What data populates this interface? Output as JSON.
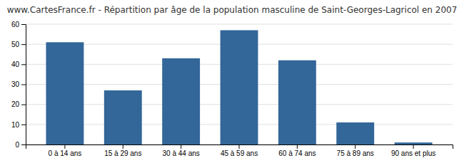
{
  "chart_data": {
    "type": "bar",
    "title": "www.CartesFrance.fr - Répartition par âge de la population masculine de Saint-Georges-Lagricol en 2007",
    "categories": [
      "0 à 14 ans",
      "15 à 29 ans",
      "30 à 44 ans",
      "45 à 59 ans",
      "60 à 74 ans",
      "75 à 89 ans",
      "90 ans et plus"
    ],
    "values": [
      51,
      27,
      43,
      57,
      42,
      11,
      1
    ],
    "color": "#336699",
    "ylim": [
      0,
      60
    ],
    "yticks": [
      0,
      10,
      20,
      30,
      40,
      50,
      60
    ],
    "grid": true
  }
}
